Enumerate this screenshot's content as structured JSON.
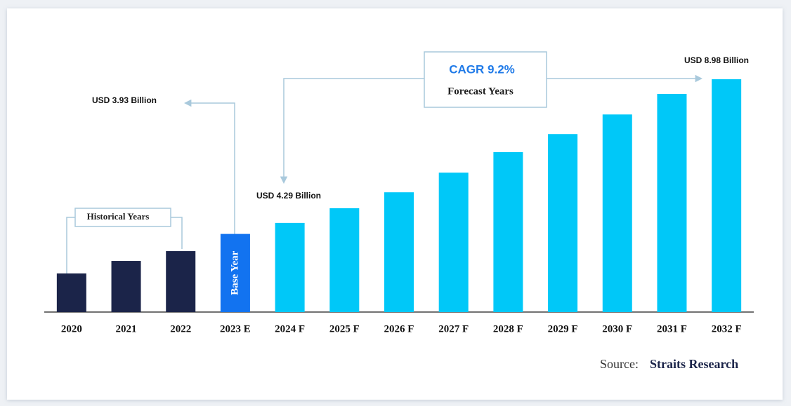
{
  "chart_data": {
    "type": "bar",
    "categories": [
      "2020",
      "2021",
      "2022",
      "2023 E",
      "2024 F",
      "2025 F",
      "2026 F",
      "2027 F",
      "2028 F",
      "2029 F",
      "2030 F",
      "2031 F",
      "2032 F"
    ],
    "values": [
      2.64,
      3.05,
      3.37,
      3.93,
      4.29,
      4.77,
      5.29,
      5.93,
      6.6,
      7.19,
      7.83,
      8.5,
      8.98
    ],
    "value_labels": [
      null,
      null,
      null,
      "USD 3.93 Billion",
      "USD 4.29 Billion",
      null,
      null,
      null,
      null,
      null,
      null,
      null,
      "USD 8.98 Billion"
    ],
    "colors": [
      "#1b2449",
      "#1b2449",
      "#1b2449",
      "#1273f0",
      "#00c8f8",
      "#00c8f8",
      "#00c8f8",
      "#00c8f8",
      "#00c8f8",
      "#00c8f8",
      "#00c8f8",
      "#00c8f8",
      "#00c8f8"
    ],
    "ylim": [
      1.38,
      9.2
    ],
    "base_year_label": "Base Year",
    "historical_label": "Historical Years",
    "cagr_label": "CAGR 9.2%",
    "forecast_label": "Forecast Years",
    "source_prefix": "Source:",
    "source_name": "Straits Research"
  }
}
